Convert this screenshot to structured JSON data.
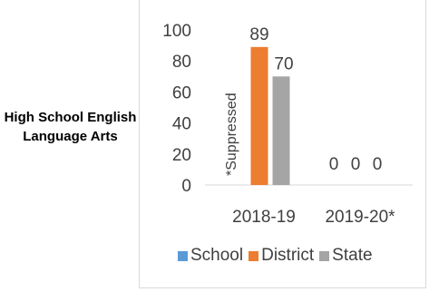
{
  "subject": "High School English Language Arts",
  "chart_data": {
    "type": "bar",
    "categories": [
      "2018-19",
      "2019-20*"
    ],
    "series": [
      {
        "name": "School",
        "color": "#5b9bd5",
        "values": [
          null,
          0
        ],
        "labels": [
          "*Suppressed",
          "0"
        ]
      },
      {
        "name": "District",
        "color": "#ed7d31",
        "values": [
          89,
          0
        ],
        "labels": [
          "89",
          "0"
        ]
      },
      {
        "name": "State",
        "color": "#a5a5a5",
        "values": [
          70,
          0
        ],
        "labels": [
          "70",
          "0"
        ]
      }
    ],
    "ylim": [
      0,
      100
    ],
    "yticks": [
      0,
      20,
      40,
      60,
      80,
      100
    ],
    "grid": false,
    "legend_position": "bottom"
  }
}
